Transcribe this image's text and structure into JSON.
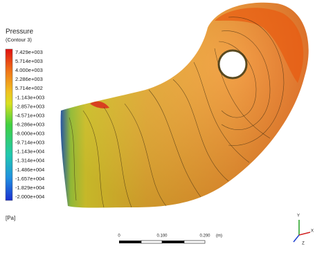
{
  "legend": {
    "title": "Pressure",
    "subtitle": "(Contour 3)",
    "labels": [
      "7.429e+003",
      "5.714e+003",
      "4.000e+003",
      "2.286e+003",
      "5.714e+002",
      "-1.143e+003",
      "-2.857e+003",
      "-4.571e+003",
      "-6.286e+003",
      "-8.000e+003",
      "-9.714e+003",
      "-1.143e+004",
      "-1.314e+004",
      "-1.486e+004",
      "-1.657e+004",
      "-1.829e+004",
      "-2.000e+004"
    ],
    "unit": "[Pa]"
  },
  "scale_bar": {
    "labels": [
      "0",
      "0.100",
      "0.200",
      "(m)"
    ]
  },
  "axes_triad": {
    "labels": [
      "Y",
      "X",
      "Z"
    ]
  }
}
